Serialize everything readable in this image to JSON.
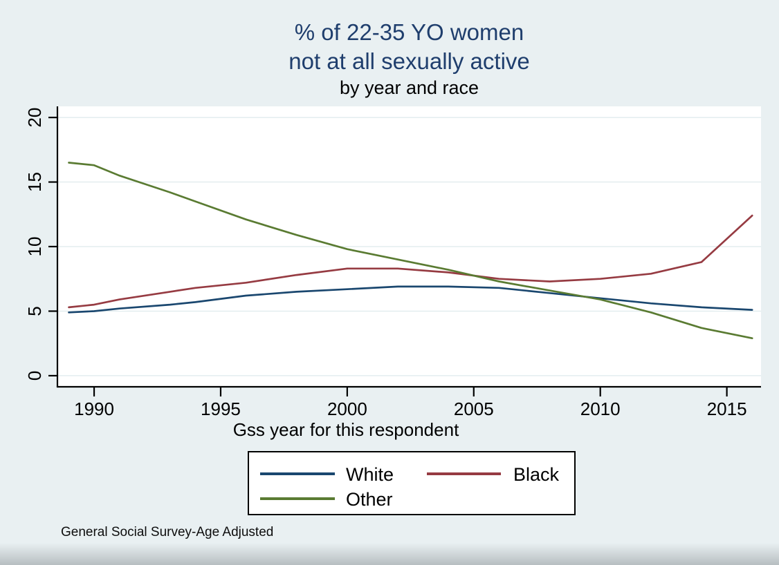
{
  "chart_data": {
    "type": "line",
    "title_lines": [
      "% of 22-35 YO women",
      "not at all sexually active"
    ],
    "subtitle": "by year and race",
    "xlabel": "Gss year for this respondent",
    "note": "General Social Survey-Age Adjusted",
    "x": [
      1989,
      1990,
      1991,
      1993,
      1994,
      1996,
      1998,
      2000,
      2002,
      2004,
      2006,
      2008,
      2010,
      2012,
      2014,
      2016
    ],
    "series": [
      {
        "name": "White",
        "color": "#1a476f",
        "values": [
          4.9,
          5.0,
          5.2,
          5.5,
          5.7,
          6.2,
          6.5,
          6.7,
          6.9,
          6.9,
          6.8,
          6.4,
          6.0,
          5.6,
          5.3,
          5.1
        ]
      },
      {
        "name": "Black",
        "color": "#963b42",
        "values": [
          5.3,
          5.5,
          5.9,
          6.5,
          6.8,
          7.2,
          7.8,
          8.3,
          8.3,
          8.0,
          7.5,
          7.3,
          7.5,
          7.9,
          8.8,
          12.4
        ]
      },
      {
        "name": "Other",
        "color": "#5a7b32",
        "values": [
          16.5,
          16.3,
          15.5,
          14.2,
          13.5,
          12.1,
          10.9,
          9.8,
          9.0,
          8.2,
          7.3,
          6.6,
          5.9,
          4.9,
          3.7,
          2.9
        ]
      }
    ],
    "xticks": [
      1990,
      1995,
      2000,
      2005,
      2010,
      2015
    ],
    "yticks": [
      0,
      5,
      10,
      15,
      20
    ],
    "xlim": [
      1988.55,
      2016.35
    ],
    "ylim": [
      -0.86,
      20.86
    ],
    "grid": true,
    "legend_position": "bottom-center",
    "legend_entries": [
      "White",
      "Black",
      "Other"
    ]
  },
  "style": {
    "background": "#e9f0f2",
    "plot_background": "#ffffff",
    "gridline_color": "#e3edef",
    "axis_color": "#000000",
    "title_color": "#1f3e6d",
    "text_color": "#000000",
    "bottom_band_edge": "#b7bec1"
  }
}
